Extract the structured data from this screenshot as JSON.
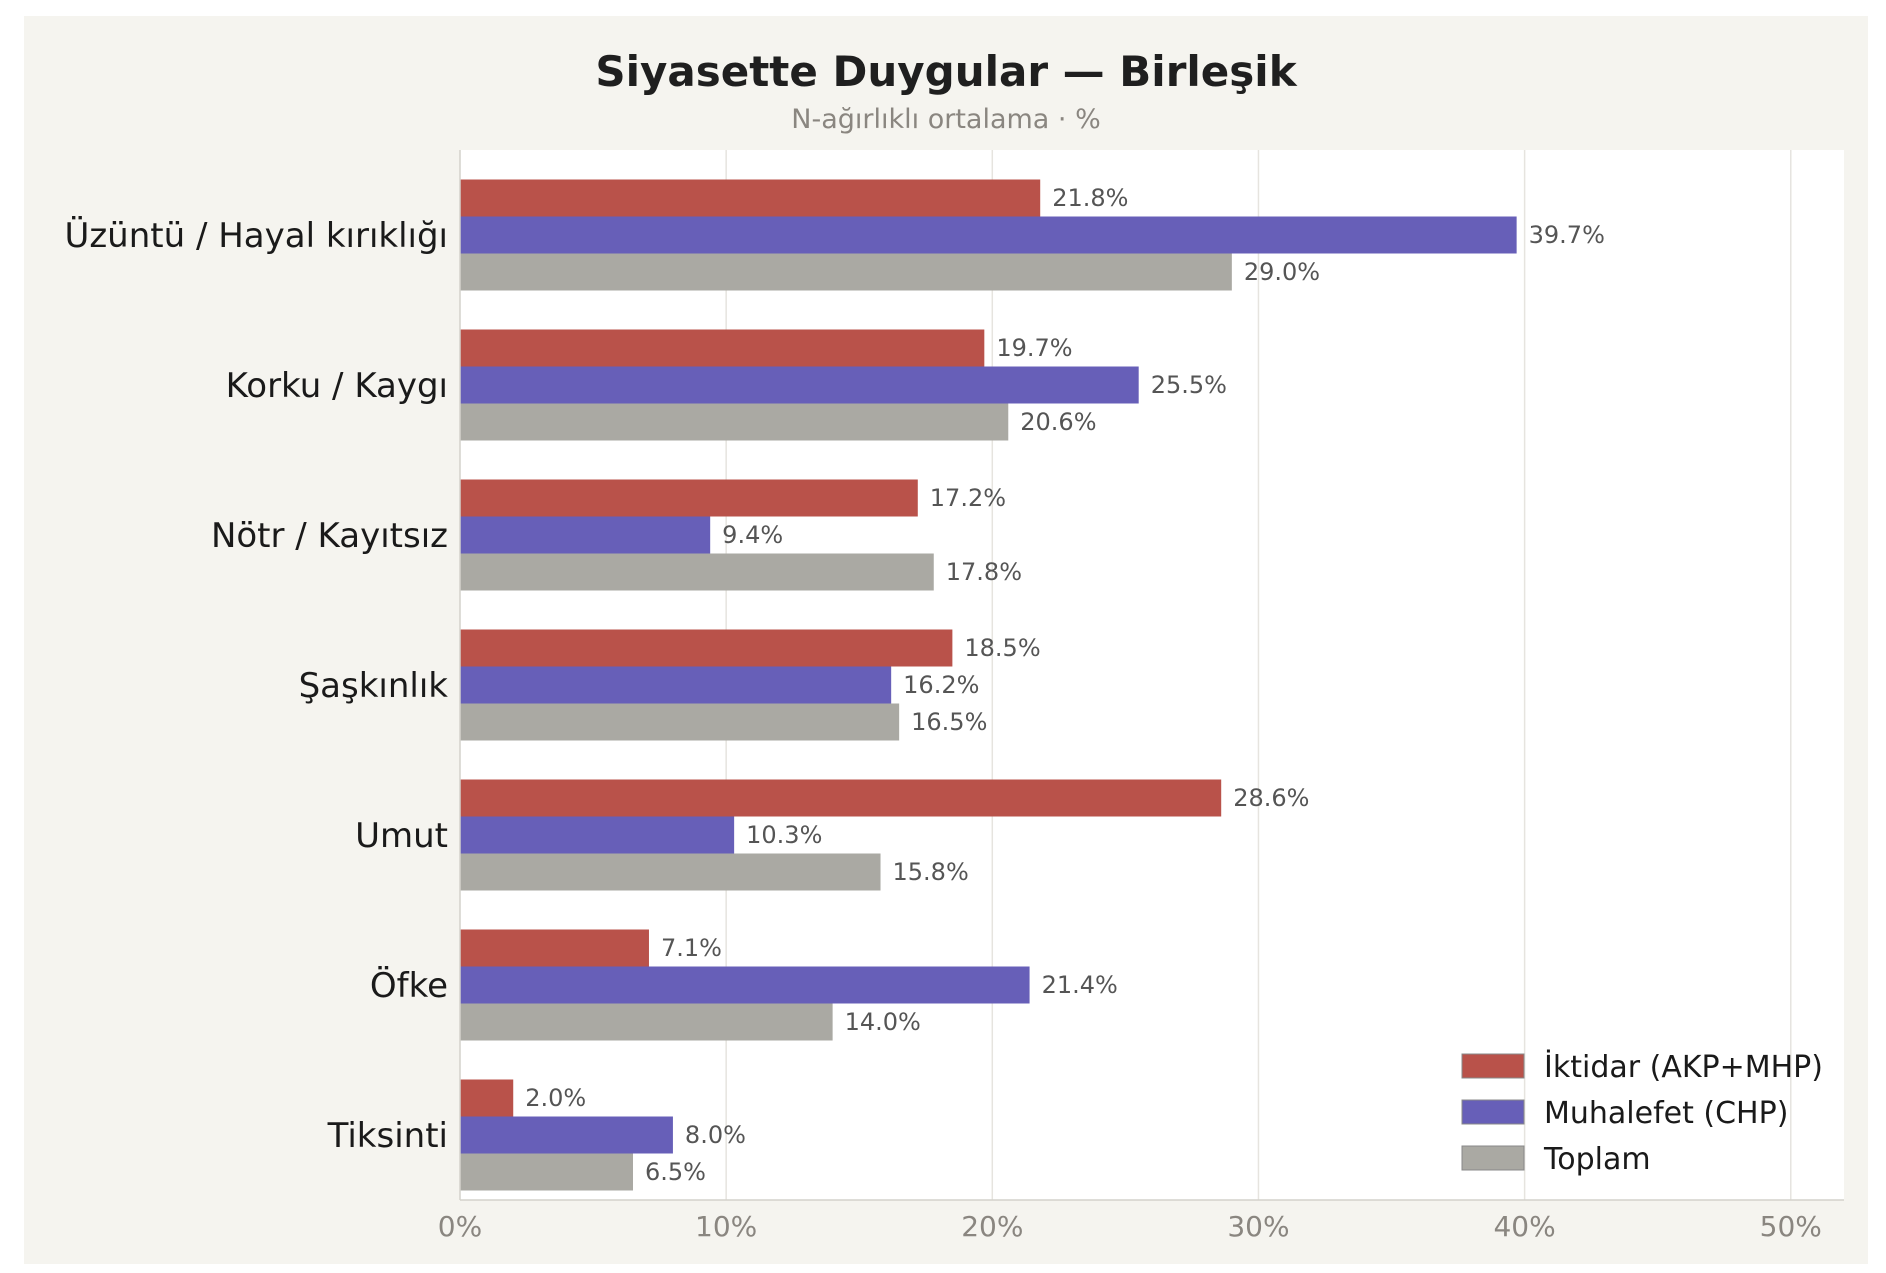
{
  "chart_data": {
    "type": "bar",
    "orientation": "horizontal",
    "title": "Siyasette Duygular — Birleşik",
    "subtitle": "N-ağırlıklı ortalama · %",
    "categories": [
      "Üzüntü / Hayal kırıklığı",
      "Korku / Kaygı",
      "Nötr / Kayıtsız",
      "Şaşkınlık",
      "Umut",
      "Öfke",
      "Tiksinti"
    ],
    "series": [
      {
        "name": "İktidar (AKP+MHP)",
        "color": "#b9524a",
        "values": [
          21.8,
          19.7,
          17.2,
          18.5,
          28.6,
          7.1,
          2.0
        ]
      },
      {
        "name": "Muhalefet (CHP)",
        "color": "#675fb8",
        "values": [
          39.7,
          25.5,
          9.4,
          16.2,
          10.3,
          21.4,
          8.0
        ]
      },
      {
        "name": "Toplam",
        "color": "#aaa9a3",
        "values": [
          29.0,
          20.6,
          17.8,
          16.5,
          15.8,
          14.0,
          6.5
        ]
      }
    ],
    "xlim": [
      0,
      52
    ],
    "xticks": [
      0,
      10,
      20,
      30,
      40,
      50
    ],
    "tick_suffix": "%",
    "value_suffix": "%",
    "grid": "vertical",
    "legend_position": "bottom-right"
  }
}
